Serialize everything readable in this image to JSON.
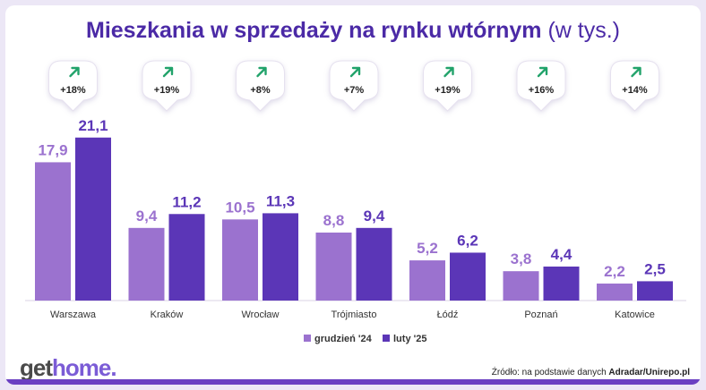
{
  "title": {
    "main": "Mieszkania w sprzedaży na rynku wtórnym",
    "unit": "(w tys.)"
  },
  "chart_data": {
    "type": "bar",
    "title": "Mieszkania w sprzedaży na rynku wtórnym (w tys.)",
    "categories": [
      "Warszawa",
      "Kraków",
      "Wrocław",
      "Trójmiasto",
      "Łódź",
      "Poznań",
      "Katowice"
    ],
    "series": [
      {
        "name": "grudzień '24",
        "color": "#9b72cf",
        "values": [
          17.9,
          9.4,
          10.5,
          8.8,
          5.2,
          3.8,
          2.2
        ],
        "labels": [
          "17,9",
          "9,4",
          "10,5",
          "8,8",
          "5,2",
          "3,8",
          "2,2"
        ]
      },
      {
        "name": "luty '25",
        "color": "#5b36b7",
        "values": [
          21.1,
          11.2,
          11.3,
          9.4,
          6.2,
          4.4,
          2.5
        ],
        "labels": [
          "21,1",
          "11,2",
          "11,3",
          "9,4",
          "6,2",
          "4,4",
          "2,5"
        ]
      }
    ],
    "changes": [
      "+18%",
      "+19%",
      "+8%",
      "+7%",
      "+19%",
      "+16%",
      "+14%"
    ],
    "xlabel": "",
    "ylabel": "",
    "ylim": [
      0,
      22
    ],
    "grid": false,
    "legend": "bottom-center"
  },
  "colors": {
    "accent_title": "#4b2aa6",
    "arrow_up": "#22a36b"
  },
  "icons": {
    "change": "arrow-up-right-icon"
  },
  "logo": {
    "get": "get",
    "home": "home."
  },
  "source": {
    "prefix": "Źródło: na podstawie danych",
    "name": "Adradar/Unirepo.pl"
  }
}
